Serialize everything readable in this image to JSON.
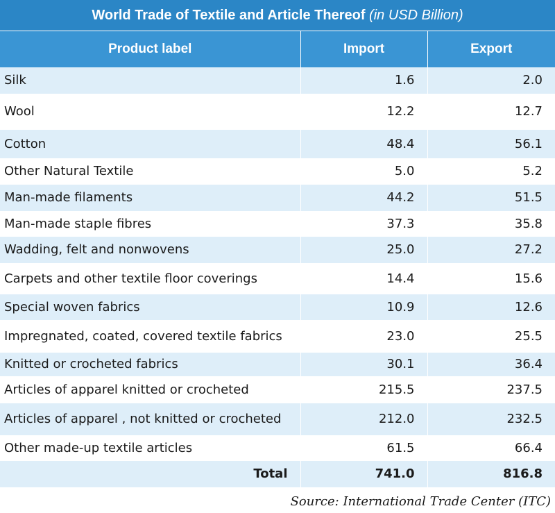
{
  "title": {
    "main": "World Trade of Textile and Article Thereof",
    "sub": "(in USD Billion)"
  },
  "headers": [
    "Product label",
    "Import",
    "Export"
  ],
  "rows": [
    {
      "label": "Silk",
      "import": "1.6",
      "export": "2.0"
    },
    {
      "label": "Wool",
      "import": "12.2",
      "export": "12.7"
    },
    {
      "label": "Cotton",
      "import": "48.4",
      "export": "56.1"
    },
    {
      "label": "Other Natural Textile",
      "import": "5.0",
      "export": "5.2"
    },
    {
      "label": "Man-made filaments",
      "import": "44.2",
      "export": "51.5"
    },
    {
      "label": "Man-made staple fibres",
      "import": "37.3",
      "export": "35.8"
    },
    {
      "label": "Wadding, felt and nonwovens",
      "import": "25.0",
      "export": "27.2"
    },
    {
      "label": "Carpets and other textile floor coverings",
      "import": "14.4",
      "export": "15.6"
    },
    {
      "label": "Special woven fabrics",
      "import": "10.9",
      "export": "12.6"
    },
    {
      "label": "Impregnated, coated, covered  textile fabrics",
      "import": "23.0",
      "export": "25.5"
    },
    {
      "label": "Knitted or crocheted fabrics",
      "import": "30.1",
      "export": "36.4"
    },
    {
      "label": "Articles of apparel  knitted or crocheted",
      "import": "215.5",
      "export": "237.5"
    },
    {
      "label": "Articles of apparel , not knitted or crocheted",
      "import": "212.0",
      "export": "232.5"
    },
    {
      "label": "Other made-up textile articles",
      "import": "61.5",
      "export": "66.4"
    }
  ],
  "total": {
    "label": "Total",
    "import": "741.0",
    "export": "816.8"
  },
  "source": "Source: International Trade Center (ITC)",
  "colors": {
    "title_bg": "#2b86c6",
    "header_bg": "#3a95d4",
    "stripe": "#deeef9"
  }
}
